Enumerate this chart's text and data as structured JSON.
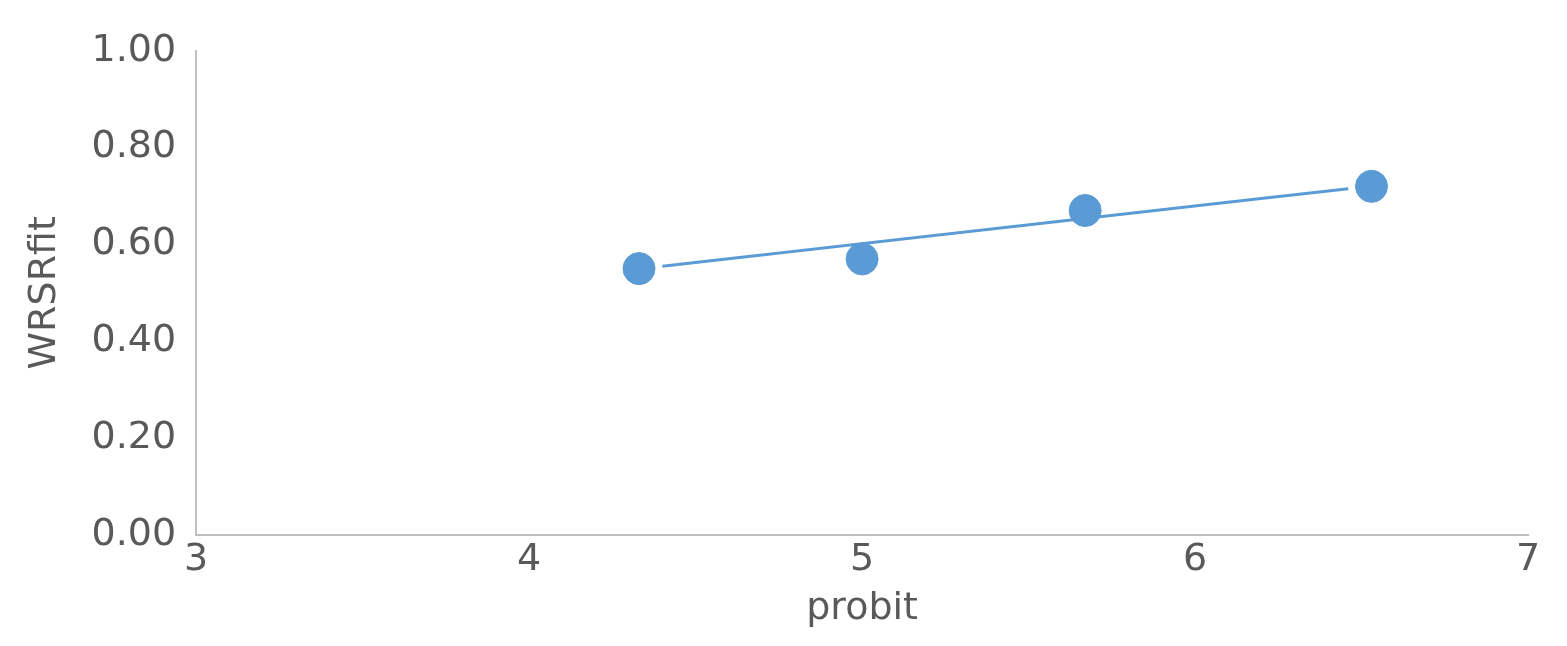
{
  "chart_data": {
    "type": "scatter",
    "xlabel": "probit",
    "ylabel": "WRSRfit",
    "xlim": [
      3,
      7
    ],
    "xticks": [
      3,
      4,
      5,
      6,
      7
    ],
    "ylim": [
      0,
      1
    ],
    "yticks": [
      {
        "value": 0,
        "label": "0.00"
      },
      {
        "value": 0.2,
        "label": "0.20"
      },
      {
        "value": 0.4,
        "label": "0.40"
      },
      {
        "value": 0.6,
        "label": "0.60"
      },
      {
        "value": 0.8,
        "label": "0.80"
      },
      {
        "value": 1,
        "label": "1.00"
      }
    ],
    "grid": false,
    "legend": false,
    "series": [
      {
        "type": "scatter",
        "color": "#5b9bd5",
        "marker": "circle",
        "x": [
          4.33,
          5.0,
          5.67,
          6.53
        ],
        "values": [
          0.55,
          0.57,
          0.67,
          0.72
        ]
      },
      {
        "type": "line",
        "color": "#5b9bd5",
        "marker": "none",
        "line_style": "solid",
        "x": [
          4.4,
          6.46
        ],
        "values": [
          0.555,
          0.715
        ]
      }
    ]
  }
}
